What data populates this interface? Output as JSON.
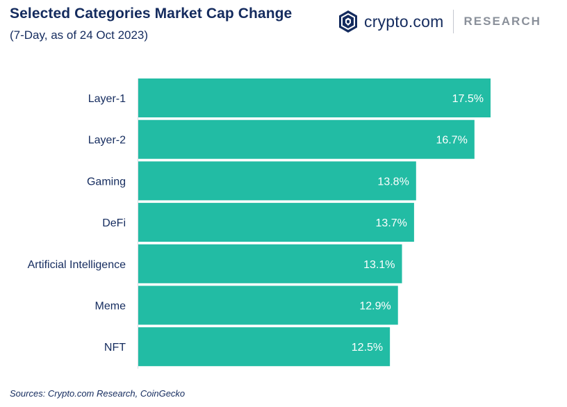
{
  "header": {
    "title": "Selected Categories Market Cap Change",
    "subtitle": "(7-Day, as of 24 Oct 2023)"
  },
  "brand": {
    "logo_icon": "crypto-com-lion-shield-icon",
    "name": "crypto.com",
    "research_label": "RESEARCH"
  },
  "footer": {
    "source": "Sources: Crypto.com Research, CoinGecko"
  },
  "colors": {
    "bar": "#22bca4",
    "text": "#142b5e",
    "bar_label": "#ffffff"
  },
  "chart_data": {
    "type": "bar",
    "orientation": "horizontal",
    "title": "Selected Categories Market Cap Change",
    "subtitle": "(7-Day, as of 24 Oct 2023)",
    "categories": [
      "Layer-1",
      "Layer-2",
      "Gaming",
      "DeFi",
      "Artificial Intelligence",
      "Meme",
      "NFT"
    ],
    "values": [
      17.5,
      16.7,
      13.8,
      13.7,
      13.1,
      12.9,
      12.5
    ],
    "value_labels": [
      "17.5%",
      "16.7%",
      "13.8%",
      "13.7%",
      "13.1%",
      "12.9%",
      "12.5%"
    ],
    "unit": "%",
    "xlim": [
      0,
      17.5
    ],
    "grid": false,
    "legend": "none"
  }
}
